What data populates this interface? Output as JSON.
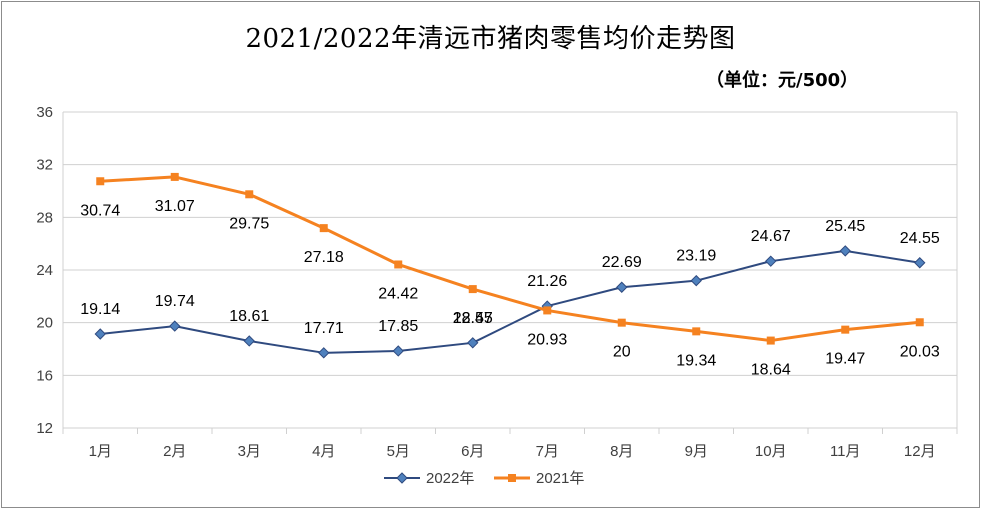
{
  "chart_data": {
    "type": "line",
    "title": "2021/2022年清远市猪肉零售均价走势图",
    "unit_label": "（单位：元/500）",
    "categories": [
      "1月",
      "2月",
      "3月",
      "4月",
      "5月",
      "6月",
      "7月",
      "8月",
      "9月",
      "10月",
      "11月",
      "12月"
    ],
    "ylim": [
      12,
      36
    ],
    "yticks": [
      12,
      16,
      20,
      24,
      28,
      32,
      36
    ],
    "grid": true,
    "legend_position": "bottom",
    "series": [
      {
        "name": "2022年",
        "color": "#2f4a7f",
        "marker": "diamond",
        "marker_color": "#4f81bd",
        "values": [
          19.14,
          19.74,
          18.61,
          17.71,
          17.85,
          18.47,
          21.26,
          22.69,
          23.19,
          24.67,
          25.45,
          24.55
        ]
      },
      {
        "name": "2021年",
        "color": "#f58220",
        "marker": "square",
        "marker_color": "#f58220",
        "values": [
          30.74,
          31.07,
          29.75,
          27.18,
          24.42,
          22.55,
          20.93,
          20,
          19.34,
          18.64,
          19.47,
          20.03
        ]
      }
    ]
  }
}
